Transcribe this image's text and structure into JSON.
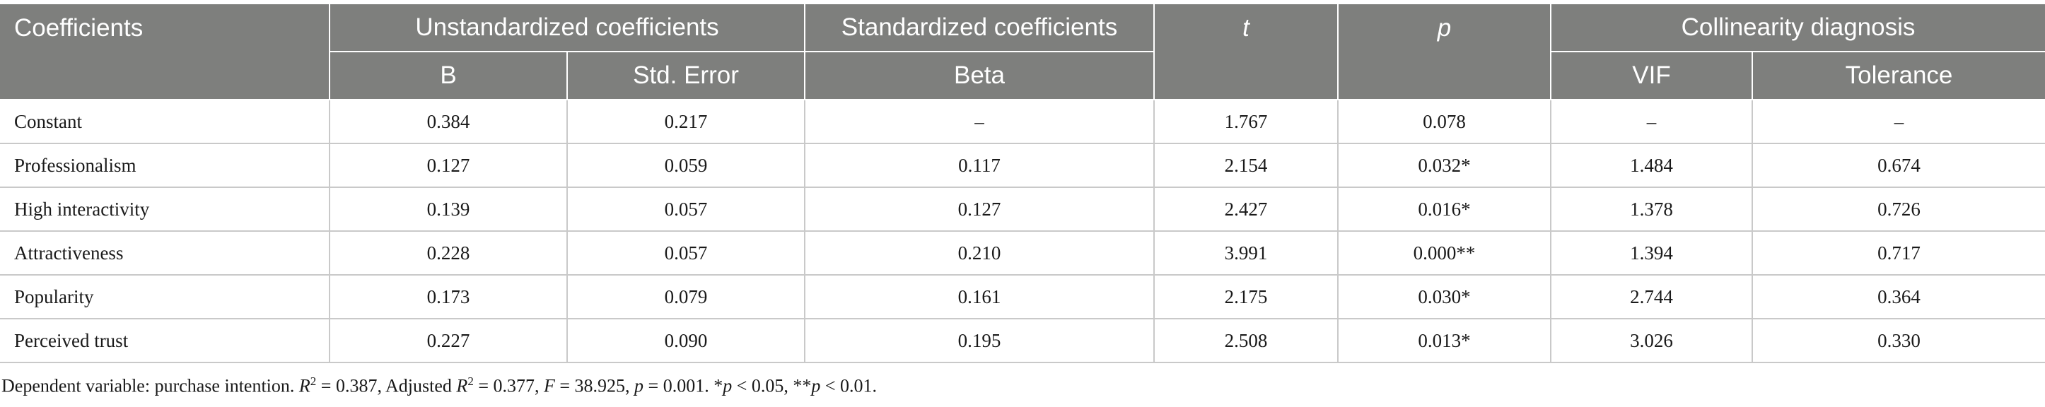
{
  "header": {
    "coefficients": "Coefficients",
    "unstd": "Unstandardized coefficients",
    "std": "Standardized coefficients",
    "t": "t",
    "p": "p",
    "collin": "Collinearity diagnosis",
    "b": "B",
    "se": "Std. Error",
    "beta": "Beta",
    "vif": "VIF",
    "tol": "Tolerance"
  },
  "rows": [
    {
      "name": "Constant",
      "b": "0.384",
      "se": "0.217",
      "beta": "–",
      "t": "1.767",
      "p": "0.078",
      "vif": "–",
      "tol": "–"
    },
    {
      "name": "Professionalism",
      "b": "0.127",
      "se": "0.059",
      "beta": "0.117",
      "t": "2.154",
      "p": "0.032*",
      "vif": "1.484",
      "tol": "0.674"
    },
    {
      "name": "High interactivity",
      "b": "0.139",
      "se": "0.057",
      "beta": "0.127",
      "t": "2.427",
      "p": "0.016*",
      "vif": "1.378",
      "tol": "0.726"
    },
    {
      "name": "Attractiveness",
      "b": "0.228",
      "se": "0.057",
      "beta": "0.210",
      "t": "3.991",
      "p": "0.000**",
      "vif": "1.394",
      "tol": "0.717"
    },
    {
      "name": "Popularity",
      "b": "0.173",
      "se": "0.079",
      "beta": "0.161",
      "t": "2.175",
      "p": "0.030*",
      "vif": "2.744",
      "tol": "0.364"
    },
    {
      "name": "Perceived trust",
      "b": "0.227",
      "se": "0.090",
      "beta": "0.195",
      "t": "2.508",
      "p": "0.013*",
      "vif": "3.026",
      "tol": "0.330"
    }
  ],
  "note": {
    "part1": "Dependent variable: purchase intention. ",
    "r": "R",
    "sq": "2",
    "part2": " = 0.387, Adjusted ",
    "part3": " = 0.377, ",
    "f": "F",
    "part4": " = 38.925, ",
    "p": "p",
    "part5": " = 0.001. *",
    "part6": " < 0.05, **",
    "part7": " < 0.01."
  }
}
